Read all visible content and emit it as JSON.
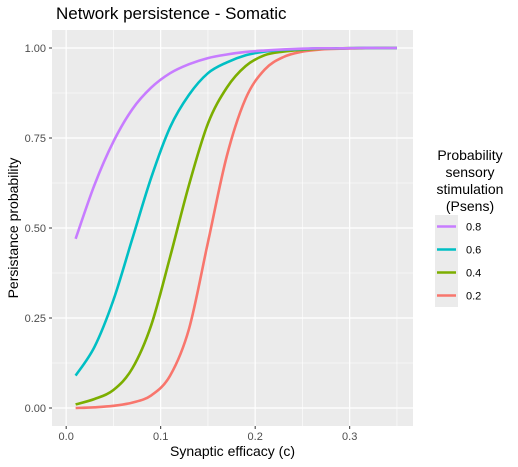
{
  "chart_data": {
    "type": "line",
    "title": "Network persistence - Somatic",
    "xlabel": "Synaptic efficacy (c)",
    "ylabel": "Persistance probability",
    "xlim": [
      -0.015,
      0.367
    ],
    "ylim": [
      -0.05,
      1.05
    ],
    "x_ticks": [
      0.0,
      0.1,
      0.2,
      0.3
    ],
    "x_tick_labels": [
      "0.0",
      "0.1",
      "0.2",
      "0.3"
    ],
    "y_ticks": [
      0.0,
      0.25,
      0.5,
      0.75,
      1.0
    ],
    "y_tick_labels": [
      "0.00",
      "0.25",
      "0.50",
      "0.75",
      "1.00"
    ],
    "background": "#ebebeb",
    "grid": true,
    "legend": {
      "title": [
        "Probability",
        "sensory",
        "stimulation",
        "(Psens)"
      ],
      "position": "right"
    },
    "x": [
      0.01,
      0.03,
      0.05,
      0.07,
      0.09,
      0.11,
      0.13,
      0.15,
      0.17,
      0.19,
      0.21,
      0.23,
      0.25,
      0.27,
      0.29,
      0.31,
      0.33,
      0.35
    ],
    "series": [
      {
        "name": "0.8",
        "color": "#c77cff",
        "values": [
          0.47,
          0.62,
          0.74,
          0.83,
          0.89,
          0.93,
          0.955,
          0.972,
          0.982,
          0.989,
          0.993,
          0.996,
          0.998,
          0.999,
          0.999,
          1.0,
          1.0,
          1.0
        ]
      },
      {
        "name": "0.6",
        "color": "#00bfc4",
        "values": [
          0.09,
          0.17,
          0.3,
          0.47,
          0.64,
          0.78,
          0.87,
          0.93,
          0.96,
          0.98,
          0.99,
          0.995,
          0.997,
          0.999,
          0.999,
          1.0,
          1.0,
          1.0
        ]
      },
      {
        "name": "0.4",
        "color": "#7cae00",
        "values": [
          0.01,
          0.025,
          0.05,
          0.11,
          0.23,
          0.42,
          0.62,
          0.79,
          0.89,
          0.95,
          0.98,
          0.99,
          0.995,
          0.998,
          0.999,
          1.0,
          1.0,
          1.0
        ]
      },
      {
        "name": "0.2",
        "color": "#f8766d",
        "values": [
          0.0,
          0.002,
          0.006,
          0.015,
          0.035,
          0.09,
          0.22,
          0.46,
          0.7,
          0.86,
          0.94,
          0.975,
          0.99,
          0.996,
          0.998,
          0.999,
          1.0,
          1.0
        ]
      }
    ]
  }
}
